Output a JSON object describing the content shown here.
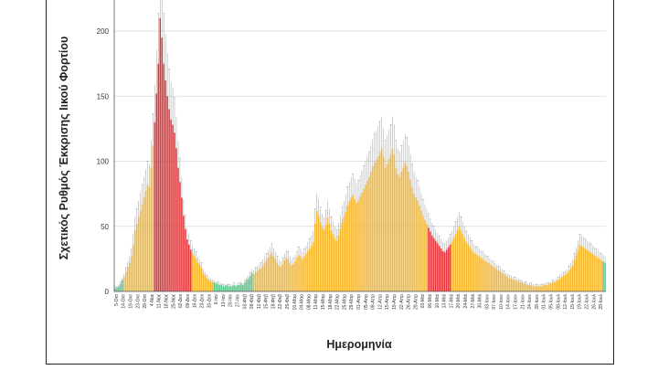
{
  "chart_data": {
    "type": "bar",
    "title": "",
    "ylabel": "Σχετικός Ρυθμός Έκκρισης Ιικού Φορτίου",
    "xlabel": "Ημερομηνία",
    "ylim": [
      0,
      230
    ],
    "yticks": [
      0,
      50,
      100,
      150,
      200
    ],
    "grid": true,
    "xtick_labels": [
      "5-Οκτ",
      "14-Οκτ",
      "19-Οκτ",
      "23-Οκτ",
      "28-Οκτ",
      "4-Νοε",
      "11-Νοε",
      "18-Νοε",
      "25-Νοε",
      "02-Δεκ",
      "09-Δεκ",
      "16-Δεκ",
      "23-Δεκ",
      "30-Δεκ",
      "6-Ιαν",
      "13-Ιαν",
      "20-Ιαν",
      "27-Ιαν",
      "03-Φεβ",
      "08-Φεβ",
      "11-Φεβ",
      "15-Φεβ",
      "18-Φεβ",
      "22-Φεβ",
      "25-Φεβ",
      "01-Μαρ",
      "04-Μαρ",
      "08-Μαρ",
      "11-Μαρ",
      "15-Μαρ",
      "18-Μαρ",
      "22-Μαρ",
      "25-Μαρ",
      "29-Μαρ",
      "01-Απρ",
      "05-Απρ",
      "08-Απρ",
      "12-Απρ",
      "15-Απρ",
      "19-Απρ",
      "22-Απρ",
      "26-Απρ",
      "29-Απρ",
      "03-Μαϊ",
      "06-Μαϊ",
      "10-Μαϊ",
      "13-Μαϊ",
      "17-Μαϊ",
      "20-Μαϊ",
      "24-Μαϊ",
      "27-Μαϊ",
      "30-Μαϊ",
      "03-Ιουν",
      "07-Ιουν",
      "10-Ιουν",
      "14-Ιουν",
      "17-Ιουν",
      "21-Ιουν",
      "24-Ιουν",
      "28-Ιουν",
      "01-Ιουλ",
      "05-Ιουλ",
      "08-Ιουλ",
      "12-Ιουλ",
      "15-Ιουλ",
      "19-Ιουλ",
      "22-Ιουλ",
      "26-Ιουλ",
      "29-Ιουλ"
    ],
    "series": [
      {
        "name": "Σχετικός Ρυθμός Έκκρισης Ιικού Φορτίου",
        "category_colors": {
          "g": "#5cc48a",
          "o": "#f5b731",
          "r": "#e2353a"
        },
        "values": [
          2,
          3,
          4,
          6,
          9,
          11,
          15,
          19,
          22,
          27,
          36,
          47,
          52,
          57,
          62,
          67,
          72,
          77,
          82,
          80,
          95,
          112,
          130,
          152,
          175,
          210,
          195,
          175,
          162,
          150,
          140,
          132,
          128,
          122,
          110,
          95,
          84,
          72,
          58,
          48,
          40,
          36,
          32,
          29,
          27,
          25,
          22,
          20,
          18,
          14,
          12,
          10,
          9,
          8,
          7,
          7,
          6,
          6,
          5,
          5,
          4,
          4,
          5,
          4,
          4,
          4,
          5,
          4,
          5,
          5,
          6,
          5,
          7,
          9,
          10,
          12,
          14,
          13,
          15,
          16,
          17,
          18,
          20,
          22,
          24,
          26,
          28,
          30,
          27,
          25,
          22,
          20,
          19,
          21,
          24,
          26,
          25,
          22,
          20,
          21,
          23,
          26,
          28,
          27,
          25,
          27,
          29,
          31,
          33,
          35,
          38,
          52,
          62,
          58,
          53,
          49,
          47,
          51,
          57,
          52,
          47,
          44,
          41,
          39,
          43,
          48,
          53,
          57,
          61,
          66,
          69,
          72,
          74,
          71,
          68,
          70,
          73,
          76,
          79,
          82,
          85,
          88,
          92,
          96,
          99,
          101,
          104,
          107,
          110,
          103,
          95,
          98,
          102,
          105,
          110,
          105,
          95,
          90,
          88,
          92,
          95,
          99,
          97,
          92,
          86,
          80,
          75,
          72,
          70,
          66,
          62,
          58,
          55,
          52,
          49,
          46,
          43,
          41,
          39,
          37,
          35,
          33,
          31,
          30,
          32,
          34,
          36,
          38,
          41,
          44,
          47,
          50,
          47,
          44,
          41,
          38,
          36,
          34,
          32,
          30,
          29,
          28,
          27,
          26,
          25,
          24,
          23,
          22,
          21,
          20,
          19,
          18,
          17,
          16,
          15,
          14,
          13,
          12,
          11,
          10,
          10,
          9,
          9,
          8,
          8,
          7,
          7,
          6,
          6,
          5,
          5,
          5,
          4,
          4,
          4,
          4,
          4,
          4,
          5,
          5,
          5,
          6,
          6,
          7,
          7,
          8,
          9,
          10,
          11,
          12,
          13,
          14,
          16,
          18,
          20,
          24,
          28,
          32,
          36,
          35,
          34,
          33,
          32,
          31,
          30,
          29,
          28,
          27,
          26,
          25,
          24,
          23,
          22
        ],
        "colors": "gggggooooooooooooooooorrrrrrrrrrrrrrrrrrrrrooooooooooooggggggggggggggggggggggooooooooooooooooooooooooooooooooooooooooooooooooooooooooooooooooooooooooooooooooooooooooooooooooorrrrrrrrrrrrrooooooooooooooooooooooooooooooooooooooooooooooooooooooooooooooooooooooooooooooooooooggggggggggggggggggggggggggggggggggoooooooooooooooooooooooooooooooooooooooooooooooooo"
      }
    ]
  }
}
